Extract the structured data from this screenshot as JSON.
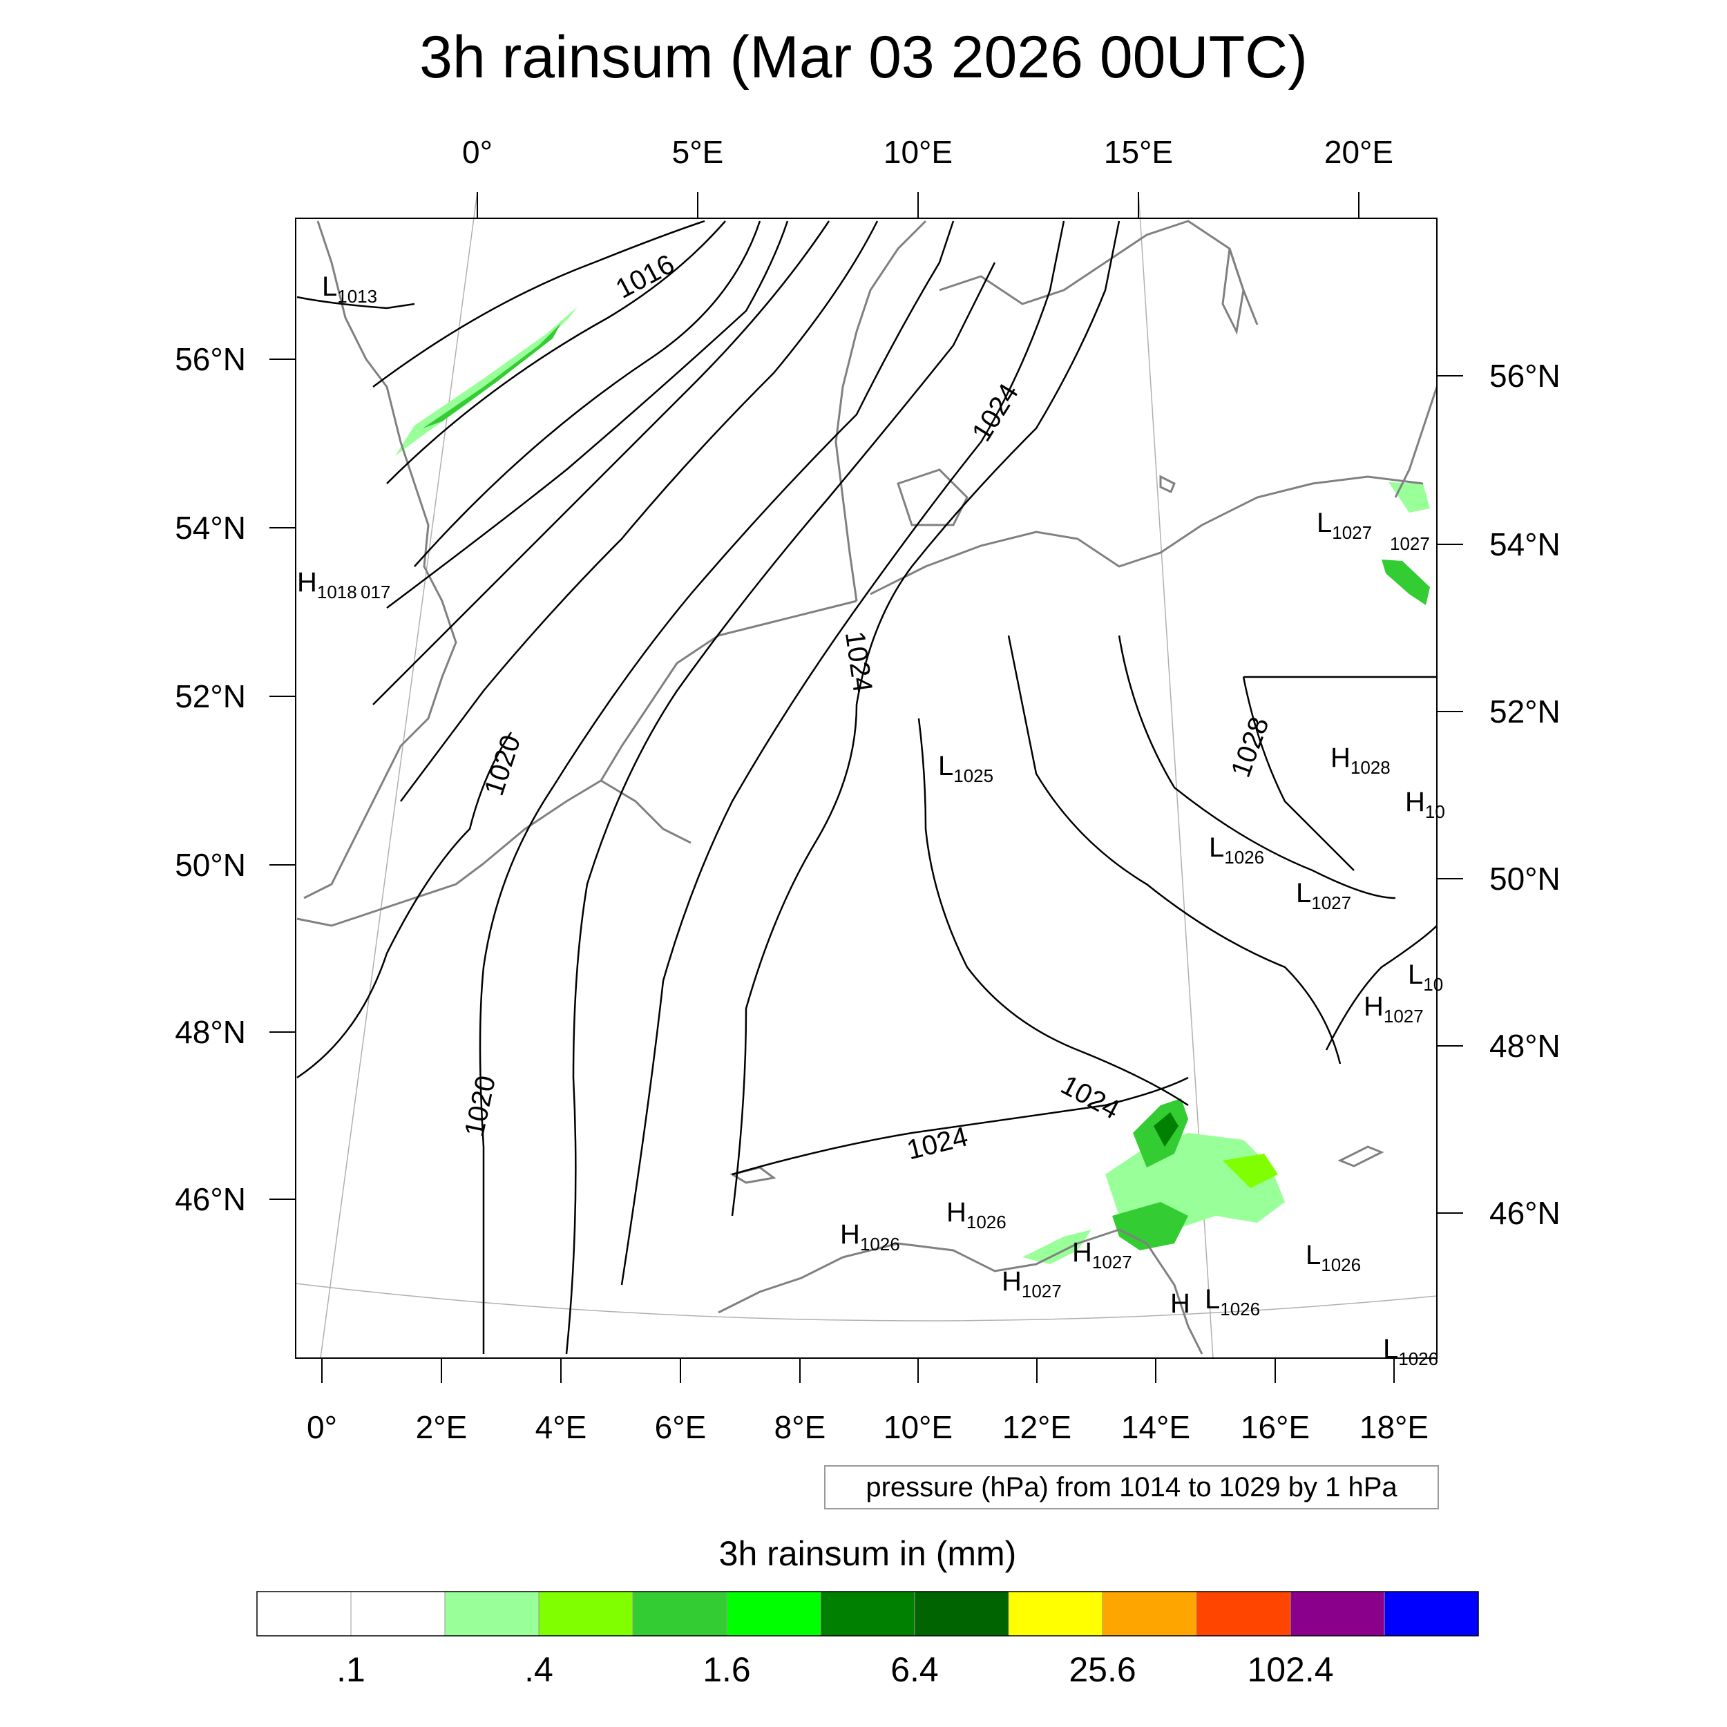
{
  "title": "3h rainsum (Mar 03 2026 00UTC)",
  "top_lon_labels": [
    "0°",
    "5°E",
    "10°E",
    "15°E",
    "20°E"
  ],
  "bottom_lon_labels": [
    "0°",
    "2°E",
    "4°E",
    "6°E",
    "8°E",
    "10°E",
    "12°E",
    "14°E",
    "16°E",
    "18°E"
  ],
  "left_lat_labels": [
    "56°N",
    "54°N",
    "52°N",
    "50°N",
    "48°N",
    "46°N"
  ],
  "right_lat_labels": [
    "56°N",
    "54°N",
    "52°N",
    "50°N",
    "48°N",
    "46°N"
  ],
  "isobar_labels": [
    "1016",
    "1020",
    "1020",
    "1024",
    "1024",
    "1024",
    "1024",
    "1028"
  ],
  "pressure_centers": [
    {
      "kind": "L",
      "value": "1013"
    },
    {
      "kind": "H",
      "value": "1018"
    },
    {
      "kind": "",
      "value": "017"
    },
    {
      "kind": "L",
      "value": "1027"
    },
    {
      "kind": "",
      "value": "1027"
    },
    {
      "kind": "L",
      "value": "1025"
    },
    {
      "kind": "H",
      "value": "1028"
    },
    {
      "kind": "H",
      "value": "10"
    },
    {
      "kind": "L",
      "value": "1026"
    },
    {
      "kind": "L",
      "value": "1027"
    },
    {
      "kind": "L",
      "value": "10"
    },
    {
      "kind": "H",
      "value": "1027"
    },
    {
      "kind": "H",
      "value": "1026"
    },
    {
      "kind": "H",
      "value": "1026"
    },
    {
      "kind": "H",
      "value": "1027"
    },
    {
      "kind": "H",
      "value": "1027"
    },
    {
      "kind": "L",
      "value": "1026"
    },
    {
      "kind": "L",
      "value": "1026"
    },
    {
      "kind": "H",
      "value": ""
    },
    {
      "kind": "L",
      "value": "1026"
    }
  ],
  "contour_info": "pressure (hPa) from 1014 to 1029 by 1 hPa",
  "colorbar": {
    "title": "3h rainsum in (mm)",
    "colors": [
      "#ffffff",
      "#ffffff",
      "#99ff99",
      "#80ff00",
      "#33cc33",
      "#00ff00",
      "#008000",
      "#006400",
      "#ffff00",
      "#ffa500",
      "#ff4500",
      "#8b008b",
      "#0000ff"
    ],
    "tick_labels": [
      ".1",
      ".4",
      "1.6",
      "6.4",
      "25.6",
      "102.4"
    ]
  },
  "colors": {
    "coastline": "#808080",
    "isobar": "#000000",
    "rain_light": "#99ff99",
    "rain_mid": "#33cc33",
    "rain_heavy": "#008000"
  }
}
